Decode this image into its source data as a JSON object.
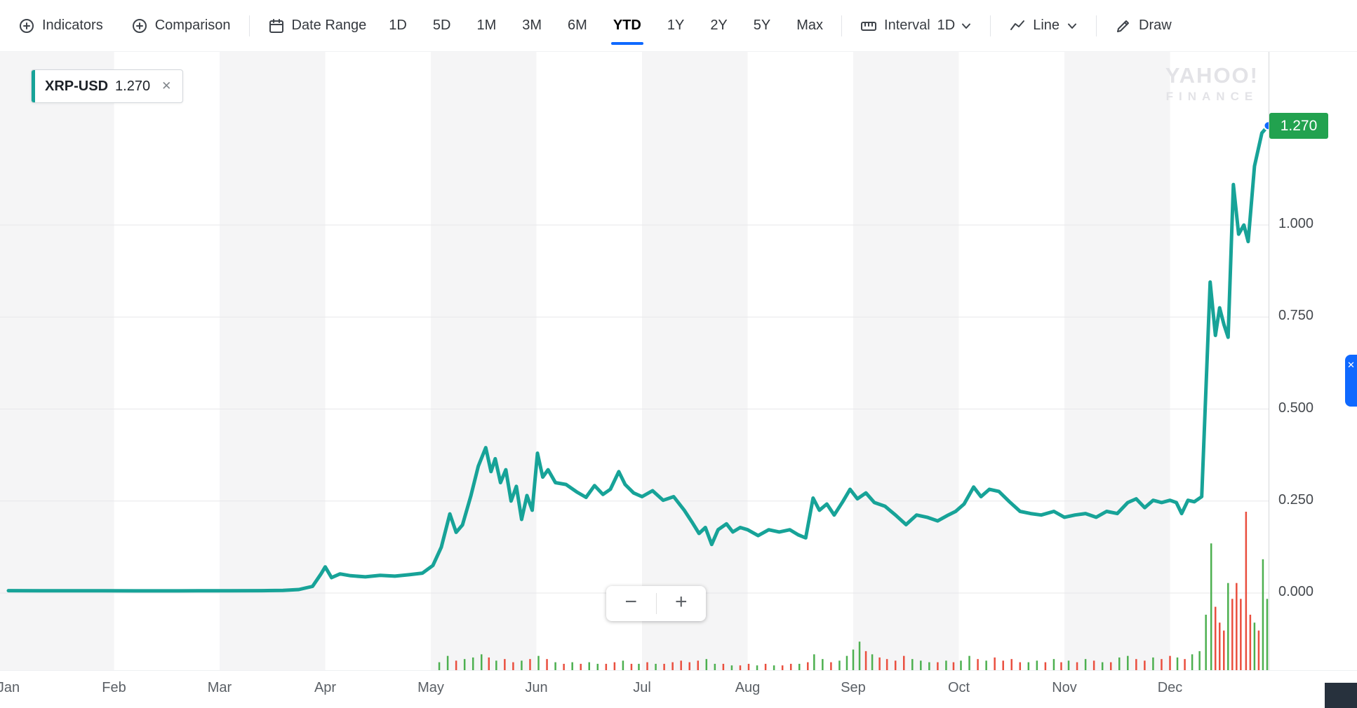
{
  "toolbar": {
    "indicators_label": "Indicators",
    "comparison_label": "Comparison",
    "date_range_label": "Date Range",
    "ranges": [
      "1D",
      "5D",
      "1M",
      "3M",
      "6M",
      "YTD",
      "1Y",
      "2Y",
      "5Y",
      "Max"
    ],
    "selected_range": "YTD",
    "interval_label": "Interval",
    "interval_value": "1D",
    "chart_type_value": "Line",
    "draw_label": "Draw"
  },
  "ticker_pill": {
    "symbol": "XRP-USD",
    "price": "1.270"
  },
  "watermark": {
    "brand": "YAHOO!",
    "sub": "FINANCE"
  },
  "last_price_badge": {
    "value": "1.270",
    "color": "#22a24f"
  },
  "zoom_controls": {
    "zoom_out_label": "−",
    "zoom_in_label": "+"
  },
  "icons": {
    "close": "✕"
  },
  "colors": {
    "line": "#17a398",
    "accent_blue": "#0f69ff",
    "volume_up": "#4db050",
    "volume_down": "#ea4f3f",
    "stripe": "#f5f5f6",
    "grid": "#e7e7ea",
    "badge_green": "#22a24f"
  },
  "chart_data": {
    "type": "line",
    "symbol": "XRP-USD",
    "range": "YTD",
    "interval": "1D",
    "last_value": 1.27,
    "x_labels": [
      "Jan",
      "Feb",
      "Mar",
      "Apr",
      "May",
      "Jun",
      "Jul",
      "Aug",
      "Sep",
      "Oct",
      "Nov",
      "Dec"
    ],
    "y_ticks": [
      {
        "label": "0.000",
        "value": 0.0
      },
      {
        "label": "0.250",
        "value": 0.25
      },
      {
        "label": "0.500",
        "value": 0.5
      },
      {
        "label": "0.750",
        "value": 0.75
      },
      {
        "label": "1.000",
        "value": 1.0
      }
    ],
    "ylim": [
      -0.21,
      1.33
    ],
    "layout": {
      "y_axis_position": "right",
      "grid": true,
      "month_stripes": true
    },
    "series": [
      {
        "name": "XRP-USD",
        "points": [
          [
            0.0,
            0.0064
          ],
          [
            0.3,
            0.0063
          ],
          [
            0.6,
            0.0062
          ],
          [
            0.9,
            0.0061
          ],
          [
            1.2,
            0.006
          ],
          [
            1.5,
            0.006
          ],
          [
            1.8,
            0.0061
          ],
          [
            2.1,
            0.0063
          ],
          [
            2.4,
            0.0065
          ],
          [
            2.6,
            0.007
          ],
          [
            2.75,
            0.0095
          ],
          [
            2.88,
            0.018
          ],
          [
            2.96,
            0.052
          ],
          [
            3.0,
            0.071
          ],
          [
            3.06,
            0.042
          ],
          [
            3.14,
            0.052
          ],
          [
            3.24,
            0.047
          ],
          [
            3.38,
            0.044
          ],
          [
            3.52,
            0.048
          ],
          [
            3.66,
            0.046
          ],
          [
            3.8,
            0.05
          ],
          [
            3.92,
            0.054
          ],
          [
            4.02,
            0.075
          ],
          [
            4.1,
            0.125
          ],
          [
            4.18,
            0.215
          ],
          [
            4.24,
            0.165
          ],
          [
            4.3,
            0.185
          ],
          [
            4.38,
            0.265
          ],
          [
            4.45,
            0.345
          ],
          [
            4.52,
            0.395
          ],
          [
            4.57,
            0.33
          ],
          [
            4.61,
            0.365
          ],
          [
            4.66,
            0.3
          ],
          [
            4.71,
            0.335
          ],
          [
            4.76,
            0.25
          ],
          [
            4.81,
            0.29
          ],
          [
            4.86,
            0.2
          ],
          [
            4.91,
            0.265
          ],
          [
            4.96,
            0.225
          ],
          [
            5.01,
            0.38
          ],
          [
            5.06,
            0.315
          ],
          [
            5.11,
            0.335
          ],
          [
            5.18,
            0.3
          ],
          [
            5.28,
            0.295
          ],
          [
            5.38,
            0.275
          ],
          [
            5.47,
            0.26
          ],
          [
            5.55,
            0.292
          ],
          [
            5.63,
            0.268
          ],
          [
            5.7,
            0.282
          ],
          [
            5.78,
            0.33
          ],
          [
            5.84,
            0.295
          ],
          [
            5.92,
            0.272
          ],
          [
            6.0,
            0.262
          ],
          [
            6.1,
            0.278
          ],
          [
            6.2,
            0.252
          ],
          [
            6.3,
            0.262
          ],
          [
            6.4,
            0.225
          ],
          [
            6.48,
            0.19
          ],
          [
            6.54,
            0.162
          ],
          [
            6.6,
            0.178
          ],
          [
            6.66,
            0.132
          ],
          [
            6.72,
            0.172
          ],
          [
            6.8,
            0.188
          ],
          [
            6.86,
            0.166
          ],
          [
            6.93,
            0.178
          ],
          [
            7.0,
            0.172
          ],
          [
            7.1,
            0.156
          ],
          [
            7.2,
            0.172
          ],
          [
            7.3,
            0.166
          ],
          [
            7.4,
            0.172
          ],
          [
            7.48,
            0.158
          ],
          [
            7.55,
            0.15
          ],
          [
            7.62,
            0.258
          ],
          [
            7.68,
            0.225
          ],
          [
            7.75,
            0.242
          ],
          [
            7.82,
            0.212
          ],
          [
            7.9,
            0.248
          ],
          [
            7.97,
            0.282
          ],
          [
            8.04,
            0.256
          ],
          [
            8.12,
            0.272
          ],
          [
            8.2,
            0.246
          ],
          [
            8.3,
            0.236
          ],
          [
            8.4,
            0.212
          ],
          [
            8.5,
            0.186
          ],
          [
            8.6,
            0.212
          ],
          [
            8.7,
            0.206
          ],
          [
            8.8,
            0.196
          ],
          [
            8.9,
            0.212
          ],
          [
            8.97,
            0.222
          ],
          [
            9.05,
            0.242
          ],
          [
            9.14,
            0.288
          ],
          [
            9.21,
            0.262
          ],
          [
            9.29,
            0.282
          ],
          [
            9.38,
            0.276
          ],
          [
            9.48,
            0.248
          ],
          [
            9.58,
            0.222
          ],
          [
            9.68,
            0.216
          ],
          [
            9.78,
            0.212
          ],
          [
            9.9,
            0.222
          ],
          [
            10.0,
            0.206
          ],
          [
            10.1,
            0.212
          ],
          [
            10.2,
            0.216
          ],
          [
            10.3,
            0.206
          ],
          [
            10.4,
            0.222
          ],
          [
            10.5,
            0.216
          ],
          [
            10.6,
            0.246
          ],
          [
            10.68,
            0.256
          ],
          [
            10.76,
            0.232
          ],
          [
            10.84,
            0.252
          ],
          [
            10.92,
            0.246
          ],
          [
            11.0,
            0.252
          ],
          [
            11.06,
            0.246
          ],
          [
            11.11,
            0.216
          ],
          [
            11.17,
            0.252
          ],
          [
            11.23,
            0.248
          ],
          [
            11.3,
            0.262
          ],
          [
            11.38,
            0.845
          ],
          [
            11.43,
            0.7
          ],
          [
            11.47,
            0.775
          ],
          [
            11.51,
            0.73
          ],
          [
            11.55,
            0.695
          ],
          [
            11.6,
            1.11
          ],
          [
            11.65,
            0.975
          ],
          [
            11.7,
            1.0
          ],
          [
            11.74,
            0.955
          ],
          [
            11.8,
            1.16
          ],
          [
            11.87,
            1.25
          ],
          [
            11.93,
            1.27
          ]
        ]
      }
    ],
    "volume_bars": [
      [
        4.08,
        0.05,
        "u"
      ],
      [
        4.16,
        0.09,
        "u"
      ],
      [
        4.24,
        0.06,
        "d"
      ],
      [
        4.32,
        0.07,
        "u"
      ],
      [
        4.4,
        0.08,
        "u"
      ],
      [
        4.48,
        0.1,
        "u"
      ],
      [
        4.55,
        0.08,
        "d"
      ],
      [
        4.62,
        0.06,
        "u"
      ],
      [
        4.7,
        0.07,
        "d"
      ],
      [
        4.78,
        0.05,
        "d"
      ],
      [
        4.86,
        0.06,
        "u"
      ],
      [
        4.94,
        0.07,
        "d"
      ],
      [
        5.02,
        0.09,
        "u"
      ],
      [
        5.1,
        0.07,
        "d"
      ],
      [
        5.18,
        0.05,
        "u"
      ],
      [
        5.26,
        0.04,
        "d"
      ],
      [
        5.34,
        0.05,
        "u"
      ],
      [
        5.42,
        0.04,
        "d"
      ],
      [
        5.5,
        0.05,
        "u"
      ],
      [
        5.58,
        0.04,
        "u"
      ],
      [
        5.66,
        0.04,
        "d"
      ],
      [
        5.74,
        0.05,
        "d"
      ],
      [
        5.82,
        0.06,
        "u"
      ],
      [
        5.9,
        0.04,
        "d"
      ],
      [
        5.97,
        0.04,
        "u"
      ],
      [
        6.05,
        0.05,
        "d"
      ],
      [
        6.13,
        0.04,
        "u"
      ],
      [
        6.21,
        0.04,
        "d"
      ],
      [
        6.29,
        0.05,
        "d"
      ],
      [
        6.37,
        0.06,
        "d"
      ],
      [
        6.45,
        0.05,
        "d"
      ],
      [
        6.53,
        0.06,
        "d"
      ],
      [
        6.61,
        0.07,
        "u"
      ],
      [
        6.69,
        0.04,
        "u"
      ],
      [
        6.77,
        0.04,
        "d"
      ],
      [
        6.85,
        0.03,
        "u"
      ],
      [
        6.93,
        0.03,
        "d"
      ],
      [
        7.01,
        0.04,
        "d"
      ],
      [
        7.09,
        0.03,
        "u"
      ],
      [
        7.17,
        0.04,
        "d"
      ],
      [
        7.25,
        0.03,
        "u"
      ],
      [
        7.33,
        0.03,
        "d"
      ],
      [
        7.41,
        0.04,
        "d"
      ],
      [
        7.49,
        0.04,
        "u"
      ],
      [
        7.57,
        0.05,
        "d"
      ],
      [
        7.63,
        0.1,
        "u"
      ],
      [
        7.71,
        0.07,
        "u"
      ],
      [
        7.79,
        0.05,
        "d"
      ],
      [
        7.87,
        0.06,
        "u"
      ],
      [
        7.94,
        0.09,
        "u"
      ],
      [
        8.0,
        0.13,
        "u"
      ],
      [
        8.06,
        0.18,
        "u"
      ],
      [
        8.12,
        0.12,
        "d"
      ],
      [
        8.18,
        0.1,
        "u"
      ],
      [
        8.25,
        0.08,
        "d"
      ],
      [
        8.32,
        0.07,
        "d"
      ],
      [
        8.4,
        0.06,
        "d"
      ],
      [
        8.48,
        0.09,
        "d"
      ],
      [
        8.56,
        0.07,
        "u"
      ],
      [
        8.64,
        0.06,
        "u"
      ],
      [
        8.72,
        0.05,
        "u"
      ],
      [
        8.8,
        0.05,
        "d"
      ],
      [
        8.88,
        0.06,
        "u"
      ],
      [
        8.95,
        0.05,
        "d"
      ],
      [
        9.02,
        0.06,
        "u"
      ],
      [
        9.1,
        0.09,
        "u"
      ],
      [
        9.18,
        0.07,
        "d"
      ],
      [
        9.26,
        0.06,
        "u"
      ],
      [
        9.34,
        0.08,
        "d"
      ],
      [
        9.42,
        0.06,
        "d"
      ],
      [
        9.5,
        0.07,
        "d"
      ],
      [
        9.58,
        0.05,
        "d"
      ],
      [
        9.66,
        0.05,
        "u"
      ],
      [
        9.74,
        0.06,
        "u"
      ],
      [
        9.82,
        0.05,
        "d"
      ],
      [
        9.9,
        0.07,
        "u"
      ],
      [
        9.97,
        0.05,
        "d"
      ],
      [
        10.04,
        0.06,
        "u"
      ],
      [
        10.12,
        0.05,
        "d"
      ],
      [
        10.2,
        0.07,
        "u"
      ],
      [
        10.28,
        0.06,
        "d"
      ],
      [
        10.36,
        0.05,
        "u"
      ],
      [
        10.44,
        0.05,
        "d"
      ],
      [
        10.52,
        0.08,
        "u"
      ],
      [
        10.6,
        0.09,
        "u"
      ],
      [
        10.68,
        0.07,
        "d"
      ],
      [
        10.76,
        0.06,
        "d"
      ],
      [
        10.84,
        0.08,
        "u"
      ],
      [
        10.92,
        0.07,
        "d"
      ],
      [
        11.0,
        0.09,
        "d"
      ],
      [
        11.07,
        0.08,
        "u"
      ],
      [
        11.14,
        0.07,
        "d"
      ],
      [
        11.21,
        0.1,
        "u"
      ],
      [
        11.28,
        0.12,
        "u"
      ],
      [
        11.34,
        0.35,
        "u"
      ],
      [
        11.39,
        0.8,
        "u"
      ],
      [
        11.43,
        0.4,
        "d"
      ],
      [
        11.47,
        0.3,
        "d"
      ],
      [
        11.51,
        0.25,
        "d"
      ],
      [
        11.55,
        0.55,
        "u"
      ],
      [
        11.59,
        0.45,
        "d"
      ],
      [
        11.63,
        0.55,
        "d"
      ],
      [
        11.67,
        0.45,
        "d"
      ],
      [
        11.72,
        1.0,
        "d"
      ],
      [
        11.76,
        0.35,
        "d"
      ],
      [
        11.8,
        0.3,
        "u"
      ],
      [
        11.84,
        0.25,
        "d"
      ],
      [
        11.88,
        0.7,
        "u"
      ],
      [
        11.92,
        0.45,
        "u"
      ]
    ]
  }
}
